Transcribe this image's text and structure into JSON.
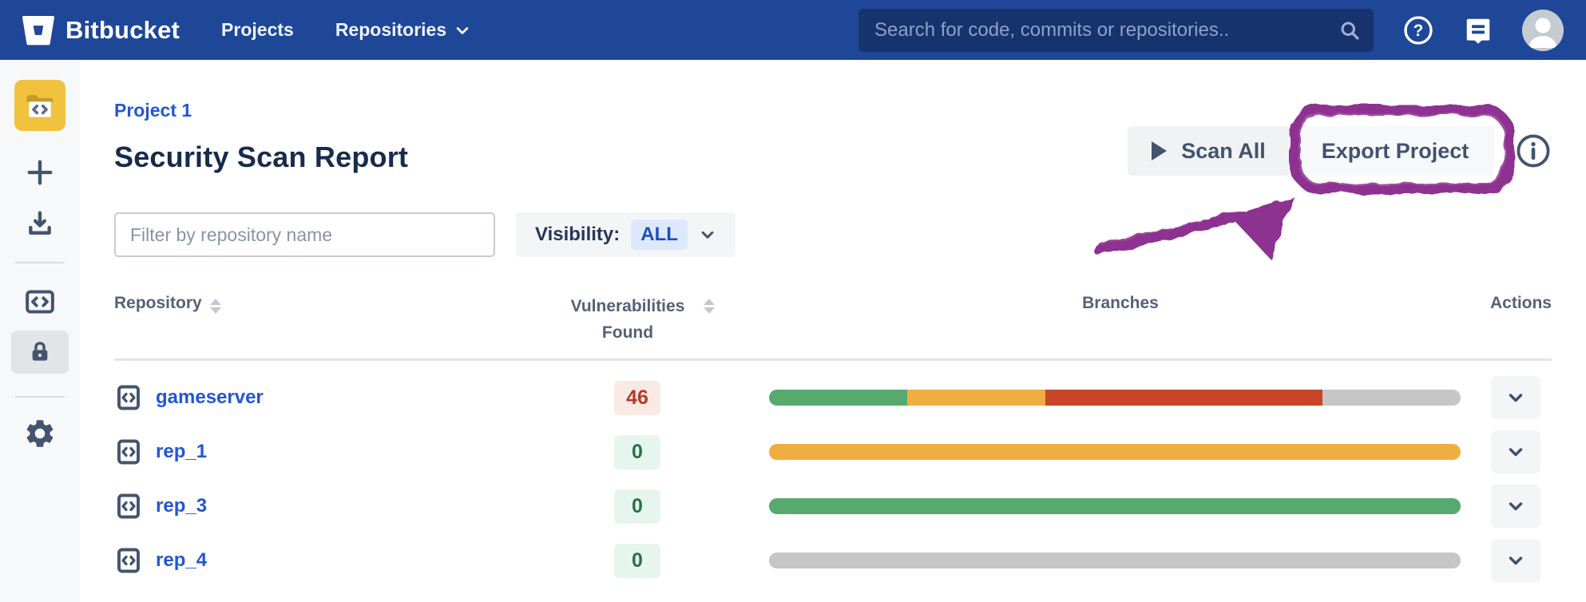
{
  "navbar": {
    "brand": "Bitbucket",
    "links": [
      {
        "label": "Projects"
      },
      {
        "label": "Repositories"
      }
    ],
    "search": {
      "placeholder": "Search for code, commits or repositories..",
      "value": ""
    },
    "icons": {
      "right": [
        "help-icon",
        "feedback-icon",
        "user-avatar"
      ]
    }
  },
  "sidebar": {
    "icons": [
      "project-avatar-folder-code",
      "plus",
      "download",
      "code",
      "lock-selected",
      "settings-gear"
    ],
    "selected": "lock"
  },
  "page": {
    "breadcrumb": "Project 1",
    "title": "Security Scan Report",
    "buttons": {
      "scan_all": "Scan All",
      "export_project": "Export Project"
    },
    "annotation": {
      "shape": "hand-drawn circle around Export Project button with curved arrow",
      "color": "#8e3191"
    }
  },
  "filters": {
    "repo_filter": {
      "placeholder": "Filter by repository name",
      "value": ""
    },
    "visibility": {
      "label": "Visibility:",
      "value": "ALL"
    }
  },
  "table": {
    "headers": [
      {
        "label": "Repository",
        "sortable": true
      },
      {
        "label": "Vulnerabilities Found",
        "sortable": true
      },
      {
        "label": "Branches",
        "sortable": false
      },
      {
        "label": "Actions",
        "sortable": false
      }
    ],
    "rows": [
      {
        "name": "gameserver",
        "vulnerabilities": "46",
        "vuln_level": "high",
        "branch_bar": [
          {
            "color": "green",
            "pct": 20
          },
          {
            "color": "orange",
            "pct": 20
          },
          {
            "color": "red",
            "pct": 40
          },
          {
            "color": "gray",
            "pct": 20
          }
        ]
      },
      {
        "name": "rep_1",
        "vulnerabilities": "0",
        "vuln_level": "none",
        "branch_bar": [
          {
            "color": "orange",
            "pct": 100
          }
        ]
      },
      {
        "name": "rep_3",
        "vulnerabilities": "0",
        "vuln_level": "none",
        "branch_bar": [
          {
            "color": "green",
            "pct": 100
          }
        ]
      },
      {
        "name": "rep_4",
        "vulnerabilities": "0",
        "vuln_level": "none",
        "branch_bar": [
          {
            "color": "gray",
            "pct": 100
          }
        ]
      }
    ]
  },
  "colors": {
    "navbar": "#1e4798",
    "search_field": "#17336e",
    "link_blue": "#2356d6",
    "heading": "#172b4d",
    "annotation_purple": "#8e3191",
    "severity": {
      "green": "#57aa6e",
      "orange": "#f0ae42",
      "red": "#ca4527",
      "gray": "#c6c6c6"
    },
    "badge_red_bg": "#fbe9e4",
    "badge_red_text": "#b23c2a",
    "badge_green_bg": "#e6f6ee",
    "badge_green_text": "#2c6e49"
  }
}
